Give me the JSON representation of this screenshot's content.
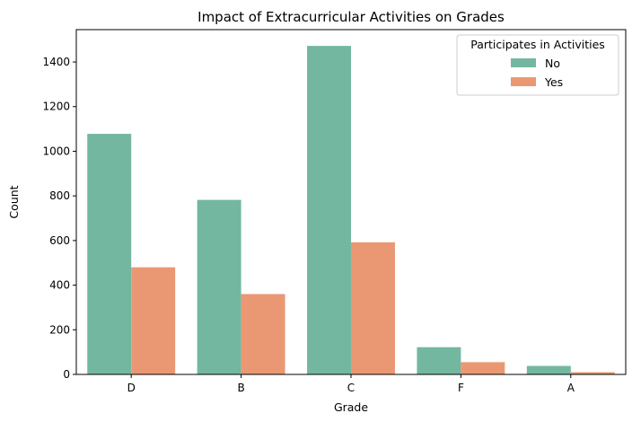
{
  "chart_data": {
    "type": "bar",
    "title": "Impact of Extracurricular Activities on Grades",
    "xlabel": "Grade",
    "ylabel": "Count",
    "categories": [
      "D",
      "B",
      "C",
      "F",
      "A"
    ],
    "series": [
      {
        "name": "No",
        "color": "#73b7a1",
        "values": [
          1078,
          782,
          1472,
          122,
          38
        ]
      },
      {
        "name": "Yes",
        "color": "#ea9874",
        "values": [
          480,
          360,
          592,
          55,
          10
        ]
      }
    ],
    "ylim": [
      0,
      1545
    ],
    "yticks": [
      0,
      200,
      400,
      600,
      800,
      1000,
      1200,
      1400
    ],
    "grid": false,
    "legend": {
      "title": "Participates in Activities",
      "placement": "top-right"
    }
  }
}
